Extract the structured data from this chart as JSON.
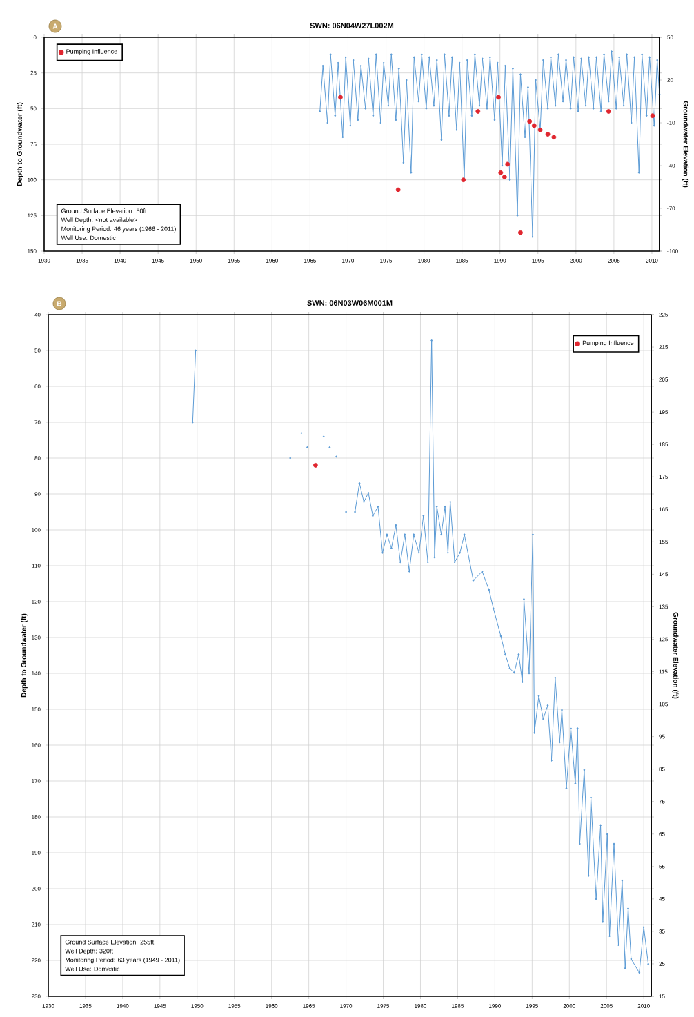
{
  "chart_data": [
    {
      "type": "line",
      "title": "SWN: 06N04W27L002M",
      "ylabel": "Depth to Groundwater (ft)",
      "y2label": "Groundwater Elevation (ft)",
      "annotations": [
        "A",
        "Ground Surface Elevation: 50ft",
        "Well Depth: <not available>",
        "Monitoring Period: 46 years (1966 - 2011)",
        "Well Use: Domestic"
      ],
      "xlim": [
        1930,
        2011
      ],
      "xticks": [
        1930,
        1935,
        1940,
        1945,
        1950,
        1955,
        1960,
        1965,
        1970,
        1975,
        1980,
        1985,
        1990,
        1995,
        2000,
        2005,
        2010
      ],
      "ylim": [
        150,
        0
      ],
      "yticks": [
        0,
        25,
        50,
        75,
        100,
        125,
        150
      ],
      "y2lim": [
        -100,
        50
      ],
      "y2ticks": [
        -100,
        -70,
        -40,
        -10,
        20,
        50
      ],
      "grid": true,
      "legend": "top left",
      "series": [
        {
          "color": "#5b9bd5",
          "marker": "circle",
          "x": [
            1966.3,
            1966.7,
            1967.3,
            1967.7,
            1968.3,
            1968.7,
            1969.3,
            1969.7,
            1970.3,
            1970.7,
            1971.3,
            1971.7,
            1972.3,
            1972.7,
            1973.3,
            1973.7,
            1974.3,
            1974.7,
            1975.3,
            1975.7,
            1976.3,
            1976.7,
            1977.3,
            1977.7,
            1978.3,
            1978.7,
            1979.3,
            1979.7,
            1980.3,
            1980.7,
            1981.3,
            1981.7,
            1982.3,
            1982.7,
            1983.3,
            1983.7,
            1984.3,
            1984.7,
            1985.3,
            1985.7,
            1986.3,
            1986.7,
            1987.3,
            1987.7,
            1988.3,
            1988.7,
            1989.3,
            1989.7,
            1990.3,
            1990.7,
            1991.3,
            1991.7,
            1992.3,
            1992.7,
            1993.3,
            1993.7,
            1994.3,
            1994.7,
            1995.3,
            1995.7,
            1996.3,
            1996.7,
            1997.3,
            1997.7,
            1998.3,
            1998.7,
            1999.3,
            1999.7,
            2000.3,
            2000.7,
            2001.3,
            2001.7,
            2002.3,
            2002.7,
            2003.3,
            2003.7,
            2004.3,
            2004.7,
            2005.3,
            2005.7,
            2006.3,
            2006.7,
            2007.3,
            2007.7,
            2008.3,
            2008.7,
            2009.3,
            2009.7,
            2010.3,
            2010.7,
            2011.0
          ],
          "values": [
            52,
            20,
            60,
            12,
            55,
            18,
            70,
            14,
            62,
            16,
            58,
            20,
            50,
            15,
            55,
            12,
            60,
            18,
            48,
            12,
            58,
            22,
            88,
            30,
            95,
            14,
            45,
            12,
            50,
            14,
            48,
            16,
            72,
            12,
            55,
            14,
            65,
            18,
            100,
            16,
            55,
            12,
            48,
            15,
            50,
            14,
            58,
            18,
            90,
            20,
            100,
            22,
            125,
            26,
            70,
            35,
            140,
            30,
            65,
            16,
            50,
            14,
            48,
            12,
            45,
            16,
            50,
            14,
            52,
            15,
            48,
            14,
            50,
            14,
            52,
            12,
            45,
            10,
            50,
            14,
            48,
            12,
            60,
            14,
            95,
            12,
            55,
            14,
            62,
            16,
            40
          ]
        },
        {
          "type": "scatter",
          "name": "Pumping Influence",
          "color": "#e0262f",
          "marker": "circle",
          "x": [
            1969.0,
            1976.6,
            1985.2,
            1987.1,
            1989.8,
            1990.1,
            1990.6,
            1991.0,
            1992.7,
            1993.9,
            1994.5,
            1995.3,
            1996.3,
            1997.1,
            2004.3,
            2010.1
          ],
          "values": [
            42,
            107,
            100,
            52,
            42,
            95,
            98,
            89,
            137,
            59,
            62,
            65,
            68,
            70,
            52,
            55
          ]
        }
      ]
    },
    {
      "type": "line",
      "title": "SWN: 06N03W06M001M",
      "ylabel": "Depth to Groundwater (ft)",
      "y2label": "Groundwater Elevation (ft)",
      "annotations": [
        "B",
        "Ground Surface Elevation: 255ft",
        "Well Depth: 320ft",
        "Monitoring Period: 63 years (1949 - 2011)",
        "Well Use: Domestic"
      ],
      "xlim": [
        1930,
        2011
      ],
      "xticks": [
        1930,
        1935,
        1940,
        1945,
        1950,
        1955,
        1960,
        1965,
        1970,
        1975,
        1980,
        1985,
        1990,
        1995,
        2000,
        2005,
        2010
      ],
      "ylim": [
        230,
        40
      ],
      "yticks": [
        40,
        50,
        60,
        70,
        80,
        90,
        100,
        110,
        120,
        130,
        140,
        150,
        160,
        170,
        180,
        190,
        200,
        210,
        220,
        230
      ],
      "y2lim": [
        15,
        225
      ],
      "y2ticks": [
        15,
        25,
        35,
        45,
        55,
        65,
        75,
        85,
        95,
        105,
        115,
        125,
        135,
        145,
        155,
        165,
        175,
        185,
        195,
        205,
        215,
        225
      ],
      "grid": true,
      "legend": "top right",
      "series": [
        {
          "color": "#5b9bd5",
          "marker": "circle",
          "x": [
            1949.4,
            1949.8,
            1955,
            1962.5,
            1963,
            1964,
            1964.5,
            1964.8,
            1965.5,
            1967,
            1967.5,
            1967.8,
            1968.2,
            1968.7,
            1969.5,
            1970,
            1970.5,
            1971.2,
            1971.8,
            1972.4,
            1973.0,
            1973.6,
            1974.3,
            1974.9,
            1975.5,
            1976.1,
            1976.7,
            1977.3,
            1977.9,
            1978.5,
            1979.1,
            1979.8,
            1980.4,
            1981.0,
            1981.5,
            1981.9,
            1982.2,
            1982.8,
            1983.3,
            1983.7,
            1984.0,
            1984.6,
            1985.3,
            1985.9,
            1987.1,
            1988.3,
            1989.2,
            1989.8,
            1990.8,
            1991.4,
            1992.0,
            1992.6,
            1993.2,
            1993.7,
            1993.9,
            1994.6,
            1995.1,
            1995.3,
            1995.9,
            1996.5,
            1997.1,
            1997.6,
            1998.1,
            1998.7,
            1999.0,
            1999.6,
            2000.2,
            2000.8,
            2001.1,
            2001.4,
            2002.0,
            2002.6,
            2002.9,
            2003.6,
            2004.2,
            2004.5,
            2005.1,
            2005.4,
            2006.0,
            2006.6,
            2007.1,
            2007.5,
            2007.9,
            2008.3,
            2009.4,
            2010.0,
            2010.6
          ],
          "values": [
            70,
            50,
            null,
            80,
            null,
            73,
            null,
            77,
            null,
            74,
            null,
            77,
            null,
            79.6,
            null,
            95,
            null,
            95,
            87,
            92.2,
            89.7,
            96.1,
            93.5,
            106.4,
            101.3,
            105.1,
            98.7,
            109,
            101.3,
            111.6,
            101.3,
            106.4,
            96.1,
            109,
            47.2,
            107.7,
            93.5,
            101.3,
            93.5,
            106.4,
            92.2,
            109,
            106.4,
            101.3,
            114.1,
            111.6,
            116.7,
            121.9,
            129.6,
            134.7,
            138.6,
            139.8,
            134.7,
            142.4,
            119.3,
            140,
            101.3,
            156.6,
            146.3,
            152.7,
            148.9,
            164.3,
            141.2,
            159.2,
            150.2,
            172,
            155.3,
            170.7,
            155.3,
            187.5,
            166.9,
            196.4,
            174.6,
            202.9,
            182.3,
            209.3,
            184.8,
            213.2,
            187.5,
            215.7,
            197.7,
            222.2,
            205.5,
            219.6,
            223.4,
            210.7,
            221
          ]
        },
        {
          "type": "scatter",
          "name": "Pumping Influence",
          "color": "#e0262f",
          "marker": "circle",
          "x": [
            1965.9
          ],
          "values": [
            82
          ]
        }
      ]
    }
  ]
}
